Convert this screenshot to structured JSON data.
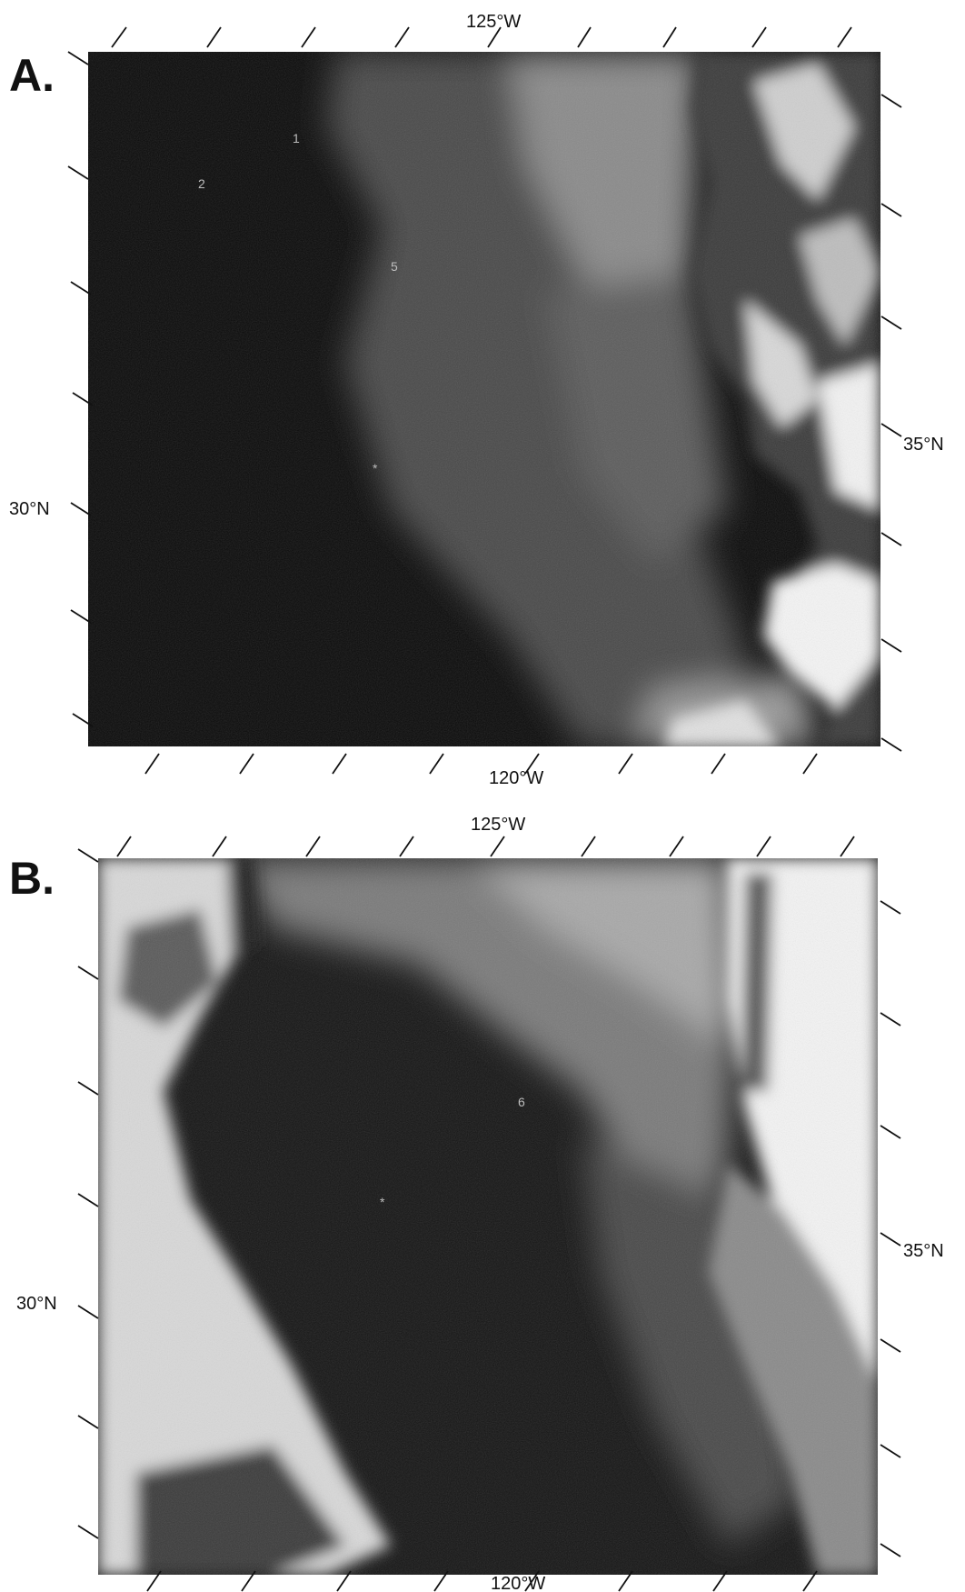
{
  "panels": [
    {
      "letter": "A.",
      "top_label": "125°W",
      "bottom_label": "120°W",
      "left_label": "30°N",
      "right_label": "35°N",
      "markers": [
        "1",
        "2",
        "5",
        "*"
      ]
    },
    {
      "letter": "B.",
      "top_label": "125°W",
      "bottom_label": "120°W",
      "left_label": "30°N",
      "right_label": "35°N",
      "markers": [
        "6",
        "*"
      ]
    }
  ]
}
